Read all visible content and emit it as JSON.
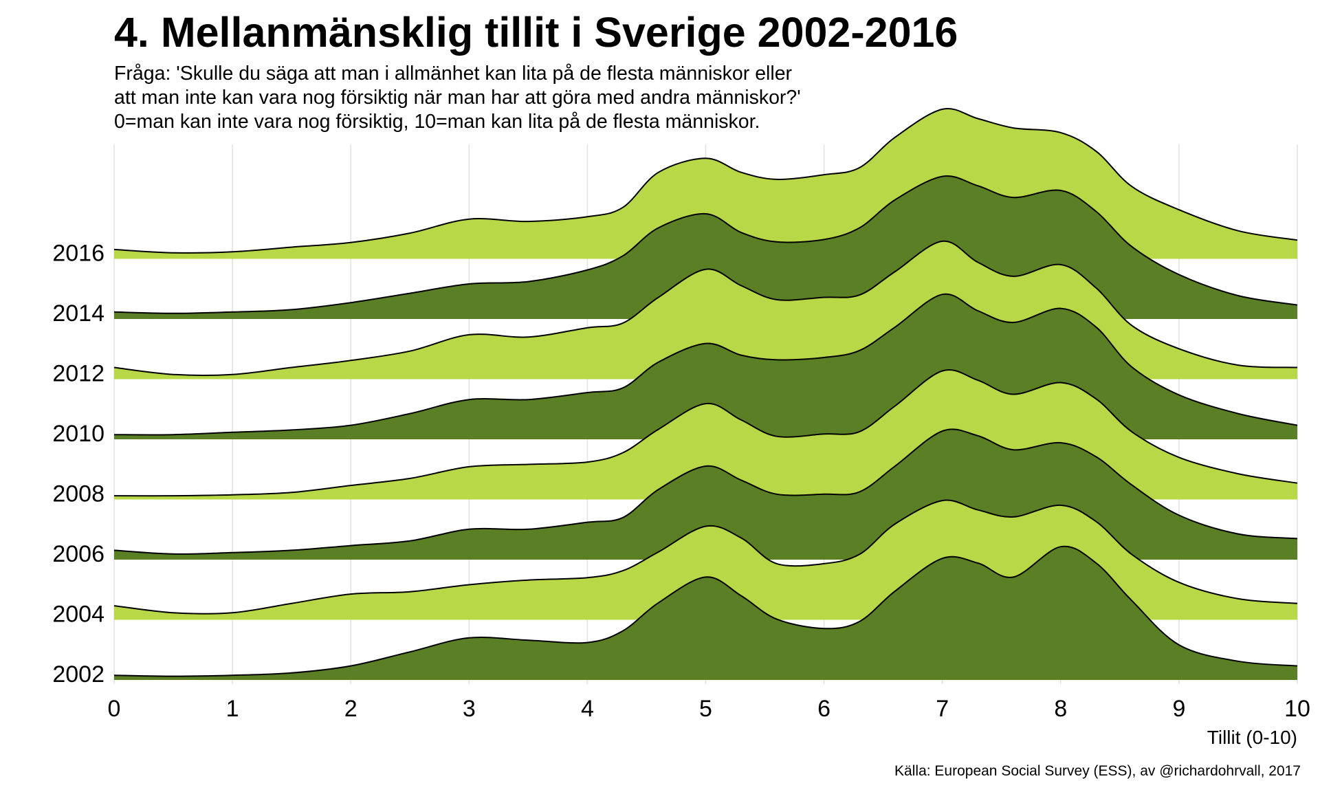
{
  "title": "4. Mellanmänsklig tillit i Sverige 2002-2016",
  "subtitle": [
    "Fråga: 'Skulle du säga att man i allmänhet kan lita på de flesta människor eller",
    "att man inte kan vara nog försiktig när man har att göra med andra människor?'",
    "0=man kan inte vara nog försiktig, 10=man kan lita på de flesta människor."
  ],
  "caption": "Källa: European Social Survey (ESS), av @richardohrvall, 2017",
  "chart_data": {
    "type": "area",
    "subtype": "ridgeline",
    "xlabel": "Tillit (0-10)",
    "xlim": [
      0,
      10
    ],
    "x_ticks": [
      "0",
      "1",
      "2",
      "3",
      "4",
      "5",
      "6",
      "7",
      "8",
      "9",
      "10"
    ],
    "grid": "vertical",
    "colors": {
      "light": "#b8d847",
      "dark": "#5a7f24",
      "outline": "#000000",
      "grid": "#e0e0e0"
    },
    "x": [
      0,
      0.5,
      1,
      1.5,
      2,
      2.5,
      3,
      3.5,
      4,
      4.3,
      4.6,
      5,
      5.3,
      5.6,
      6,
      6.3,
      6.6,
      7,
      7.3,
      7.6,
      8,
      8.3,
      8.6,
      9,
      9.5,
      10
    ],
    "series": [
      {
        "name": "2002",
        "shade": "dark",
        "values": [
          0.1,
          0.08,
          0.1,
          0.15,
          0.3,
          0.6,
          0.9,
          0.85,
          0.8,
          1.05,
          1.65,
          2.2,
          1.8,
          1.3,
          1.1,
          1.25,
          1.9,
          2.6,
          2.5,
          2.2,
          2.85,
          2.5,
          1.7,
          0.75,
          0.4,
          0.3
        ]
      },
      {
        "name": "2004",
        "shade": "light",
        "values": [
          0.3,
          0.15,
          0.15,
          0.35,
          0.55,
          0.6,
          0.75,
          0.85,
          0.9,
          1.05,
          1.45,
          2.0,
          1.75,
          1.2,
          1.2,
          1.4,
          2.05,
          2.55,
          2.35,
          2.2,
          2.45,
          2.1,
          1.4,
          0.8,
          0.45,
          0.35
        ]
      },
      {
        "name": "2006",
        "shade": "dark",
        "values": [
          0.2,
          0.12,
          0.15,
          0.2,
          0.3,
          0.4,
          0.65,
          0.65,
          0.8,
          0.9,
          1.5,
          2.0,
          1.7,
          1.4,
          1.4,
          1.45,
          2.0,
          2.75,
          2.65,
          2.35,
          2.5,
          2.2,
          1.6,
          0.95,
          0.55,
          0.45
        ]
      },
      {
        "name": "2008",
        "shade": "light",
        "values": [
          0.08,
          0.08,
          0.1,
          0.15,
          0.3,
          0.45,
          0.7,
          0.75,
          0.8,
          1.0,
          1.5,
          2.05,
          1.7,
          1.35,
          1.4,
          1.45,
          2.0,
          2.75,
          2.55,
          2.25,
          2.5,
          2.15,
          1.45,
          0.9,
          0.55,
          0.35
        ]
      },
      {
        "name": "2010",
        "shade": "dark",
        "values": [
          0.1,
          0.1,
          0.15,
          0.2,
          0.3,
          0.55,
          0.85,
          0.85,
          1.0,
          1.1,
          1.65,
          2.05,
          1.8,
          1.7,
          1.75,
          1.9,
          2.4,
          3.1,
          2.75,
          2.5,
          2.8,
          2.4,
          1.55,
          0.95,
          0.55,
          0.3
        ]
      },
      {
        "name": "2012",
        "shade": "light",
        "values": [
          0.25,
          0.1,
          0.1,
          0.25,
          0.4,
          0.6,
          0.95,
          0.9,
          1.1,
          1.2,
          1.75,
          2.35,
          2.0,
          1.7,
          1.75,
          1.8,
          2.3,
          2.95,
          2.5,
          2.2,
          2.45,
          1.95,
          1.15,
          0.65,
          0.3,
          0.25
        ]
      },
      {
        "name": "2014",
        "shade": "dark",
        "values": [
          0.15,
          0.12,
          0.15,
          0.2,
          0.35,
          0.55,
          0.75,
          0.8,
          1.05,
          1.35,
          1.95,
          2.25,
          1.85,
          1.65,
          1.7,
          1.95,
          2.55,
          3.05,
          2.85,
          2.6,
          2.75,
          2.3,
          1.55,
          0.95,
          0.5,
          0.3
        ]
      },
      {
        "name": "2016",
        "shade": "light",
        "values": [
          0.2,
          0.13,
          0.15,
          0.25,
          0.35,
          0.55,
          0.85,
          0.8,
          0.9,
          1.1,
          1.85,
          2.15,
          1.85,
          1.7,
          1.8,
          1.95,
          2.6,
          3.2,
          3.0,
          2.8,
          2.7,
          2.3,
          1.55,
          1.05,
          0.6,
          0.4
        ]
      }
    ]
  }
}
